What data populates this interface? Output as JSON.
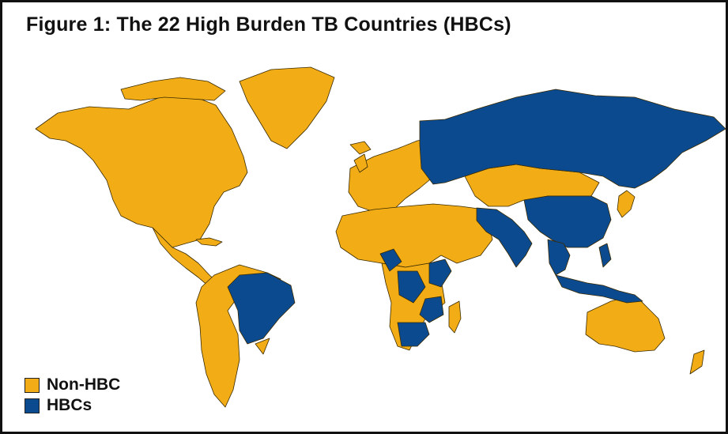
{
  "title": "Figure 1: The 22 High Burden TB Countries (HBCs)",
  "legend": [
    {
      "label": "Non-HBC",
      "color": "#f2ad16"
    },
    {
      "label": "HBCs",
      "color": "#0b4a8f"
    }
  ],
  "colors": {
    "non_hbc": "#f2ad16",
    "hbc": "#0b4a8f",
    "border": "#3a2a00",
    "frame": "#111111",
    "background": "#ffffff"
  }
}
